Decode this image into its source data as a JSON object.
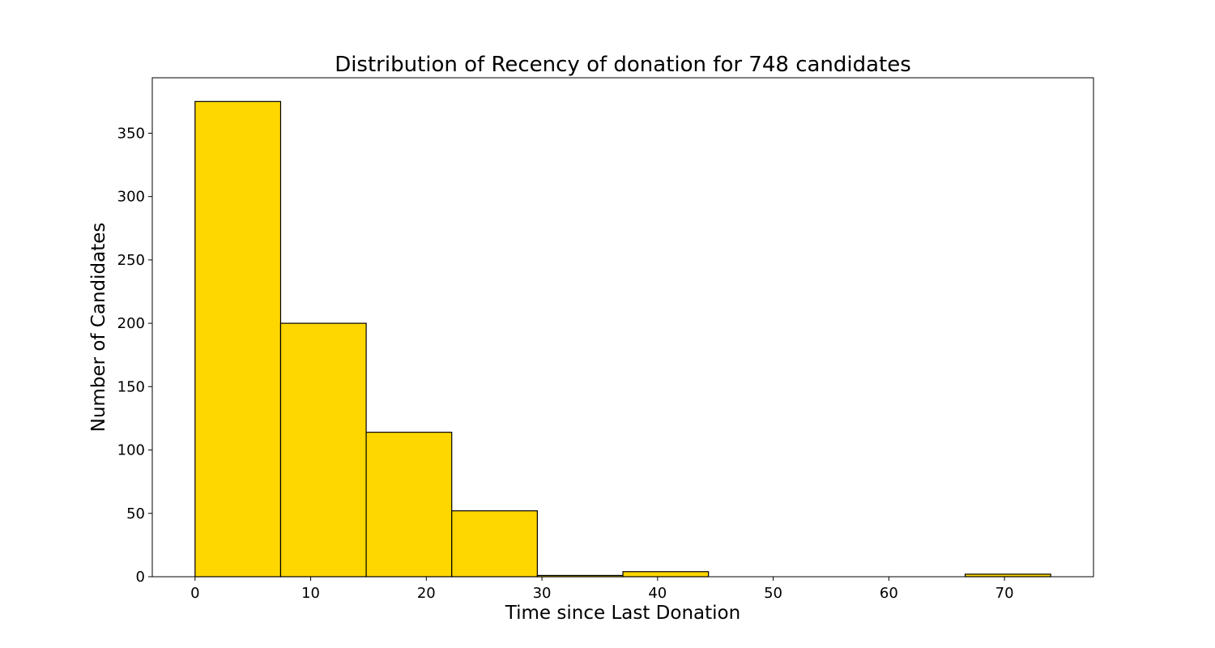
{
  "chart_data": {
    "type": "bar",
    "title": "Distribution of Recency of donation for 748 candidates",
    "xlabel": "Time since Last Donation",
    "ylabel": "Number of Candidates",
    "bin_edges": [
      0,
      7.4,
      14.8,
      22.2,
      29.6,
      37.0,
      44.4,
      51.8,
      59.2,
      66.6,
      74.0
    ],
    "values": [
      375,
      200,
      114,
      52,
      1,
      4,
      0,
      0,
      0,
      2
    ],
    "xlim": [
      -3.7,
      77.7
    ],
    "ylim": [
      0,
      393.75
    ],
    "xticks": [
      0,
      10,
      20,
      30,
      40,
      50,
      60,
      70
    ],
    "xtick_labels": [
      "0",
      "10",
      "20",
      "30",
      "40",
      "50",
      "60",
      "70"
    ],
    "yticks": [
      0,
      50,
      100,
      150,
      200,
      250,
      300,
      350
    ],
    "ytick_labels": [
      "0",
      "50",
      "100",
      "150",
      "200",
      "250",
      "300",
      "350"
    ],
    "bar_color": "#FFD700",
    "edge_color": "#000000",
    "grid": false,
    "legend": false
  }
}
